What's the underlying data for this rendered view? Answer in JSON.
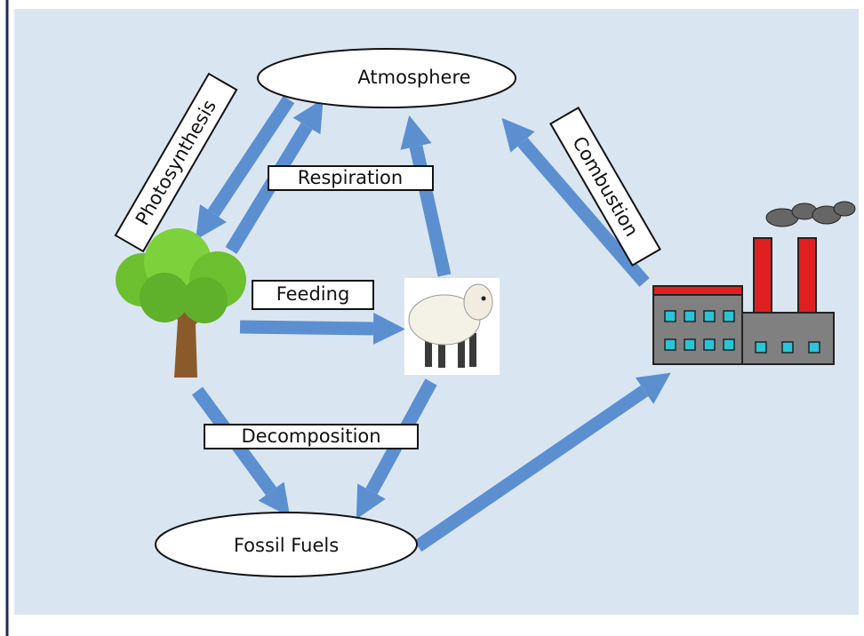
{
  "nodes": [
    {
      "label": "Atmosphere"
    },
    {
      "label": "Fossil Fuels"
    }
  ],
  "processes": [
    {
      "label": "Photosynthesis"
    },
    {
      "label": "Respiration"
    },
    {
      "label": "Combustion"
    },
    {
      "label": "Feeding"
    },
    {
      "label": "Decomposition"
    }
  ]
}
